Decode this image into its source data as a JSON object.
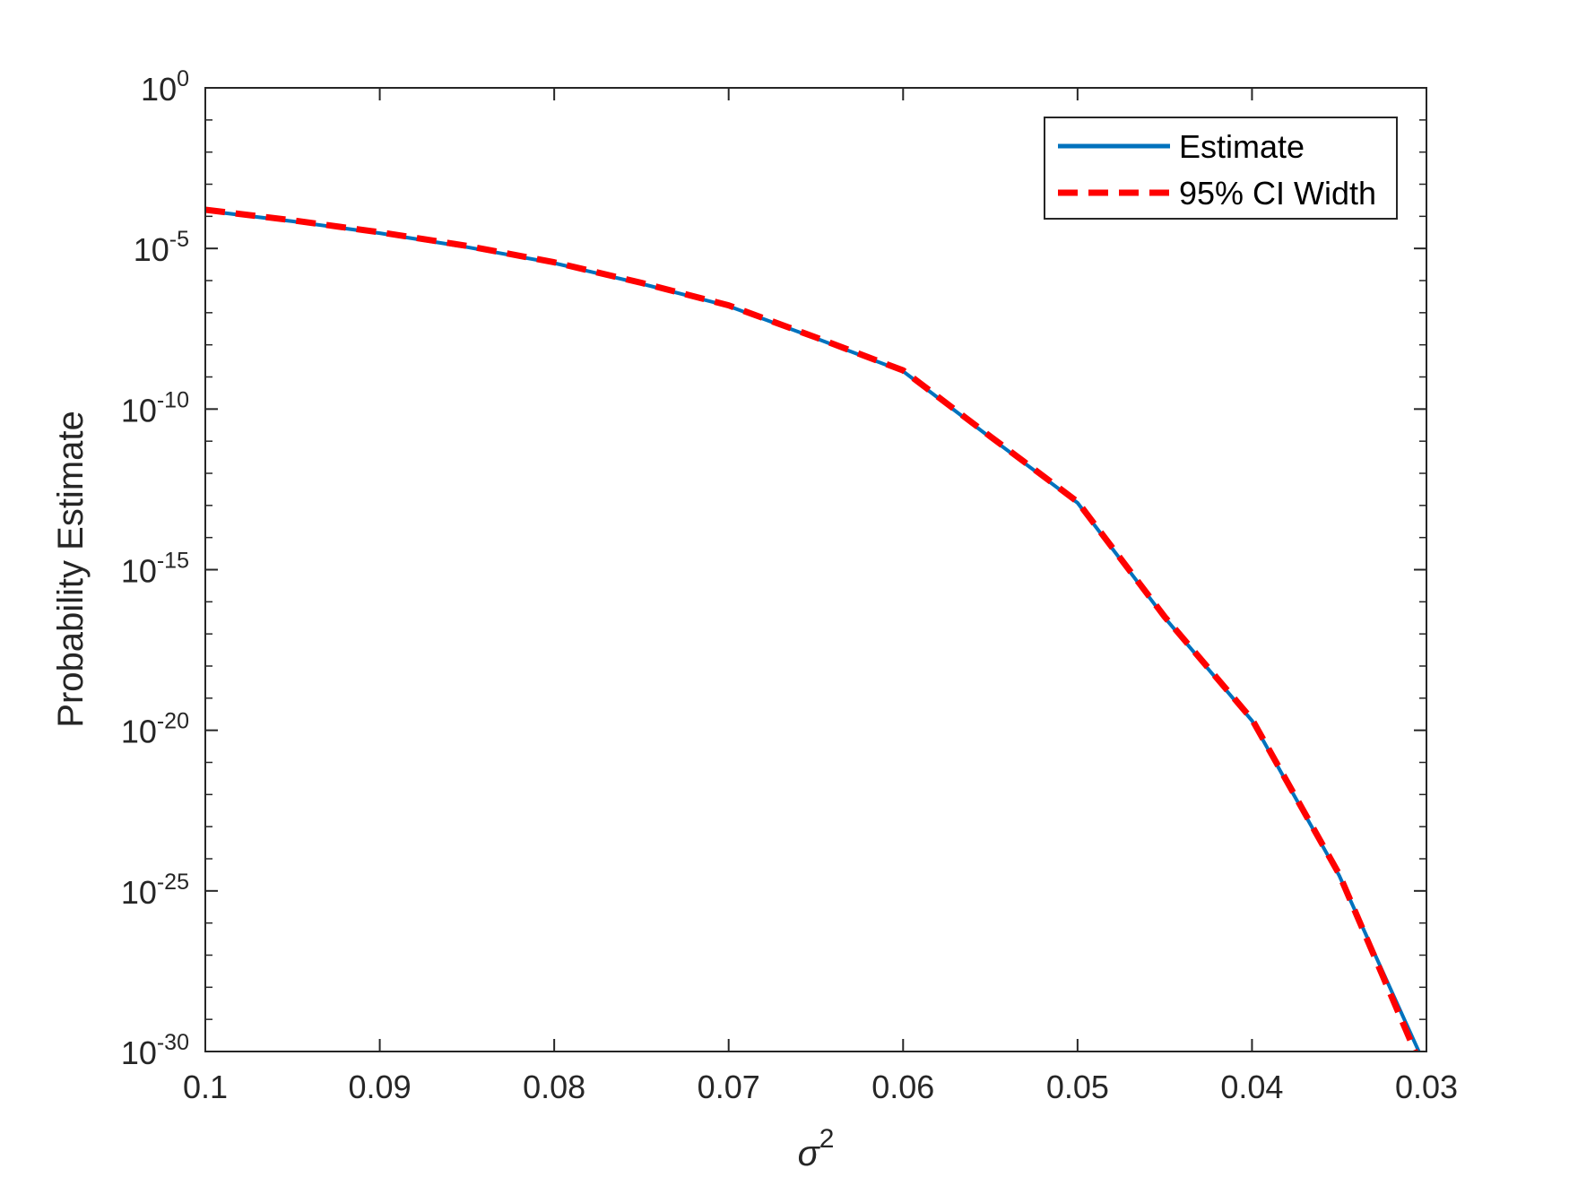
{
  "chart_data": {
    "type": "line",
    "title": "",
    "xlabel": "σ",
    "xlabel_superscript": "2",
    "ylabel": "Probability Estimate",
    "x_direction": "reversed",
    "xlim": [
      0.1,
      0.03
    ],
    "x_ticks": [
      "0.1",
      "0.09",
      "0.08",
      "0.07",
      "0.06",
      "0.05",
      "0.04",
      "0.03"
    ],
    "y_scale": "log",
    "ylim": [
      1e-30,
      1
    ],
    "y_tick_base": "10",
    "y_tick_exponents": [
      "0",
      "-5",
      "-10",
      "-15",
      "-20",
      "-25",
      "-30"
    ],
    "grid": false,
    "legend_position": "top-right",
    "x": [
      0.1,
      0.095,
      0.09,
      0.085,
      0.08,
      0.075,
      0.07,
      0.065,
      0.06,
      0.055,
      0.05,
      0.045,
      0.04,
      0.035,
      0.03
    ],
    "series": [
      {
        "name": "Estimate",
        "color": "#0072BD",
        "style": "solid",
        "values": [
          0.00015,
          7e-05,
          3e-05,
          1.1e-05,
          3.5e-06,
          8e-07,
          1.6e-07,
          1.6e-08,
          1.5e-09,
          1.3e-11,
          1.2e-13,
          3.2e-17,
          2e-20,
          3e-25,
          3e-31
        ]
      },
      {
        "name": "95% CI Width",
        "color": "#FF0000",
        "style": "dashed",
        "values": [
          0.00016,
          7.5e-05,
          3.2e-05,
          1.2e-05,
          3.7e-06,
          8.5e-07,
          1.7e-07,
          1.7e-08,
          1.6e-09,
          1.4e-11,
          1.3e-13,
          3.4e-17,
          2.2e-20,
          3.3e-25,
          1.5e-31
        ]
      }
    ]
  }
}
